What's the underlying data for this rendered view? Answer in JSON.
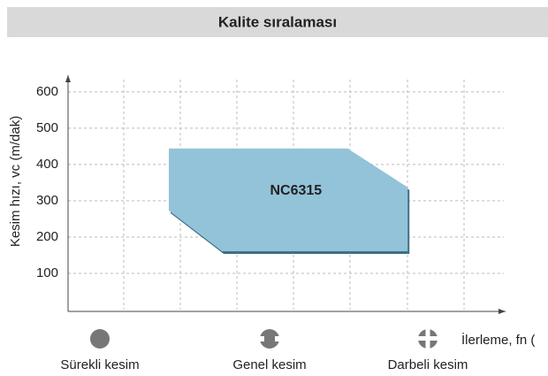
{
  "chart_data": {
    "type": "area",
    "title": "Kalite sıralaması",
    "ylabel": "Kesim hızı, vc (m/dak)",
    "xlabel": "İlerleme, fn (",
    "ylim": [
      0,
      646
    ],
    "yticks": [
      100,
      200,
      300,
      400,
      500,
      600
    ],
    "xlim": [
      0,
      7.73
    ],
    "grid": true,
    "series": [
      {
        "name": "NC6315",
        "color": "#93c3d8",
        "x": [
          1.78,
          4.94,
          6.0,
          6.0,
          2.72,
          1.78
        ],
        "values": [
          444,
          444,
          337,
          161,
          161,
          273
        ]
      }
    ],
    "annotations": [
      "Sürekli kesim",
      "Genel kesim",
      "Darbeli kesim"
    ]
  }
}
